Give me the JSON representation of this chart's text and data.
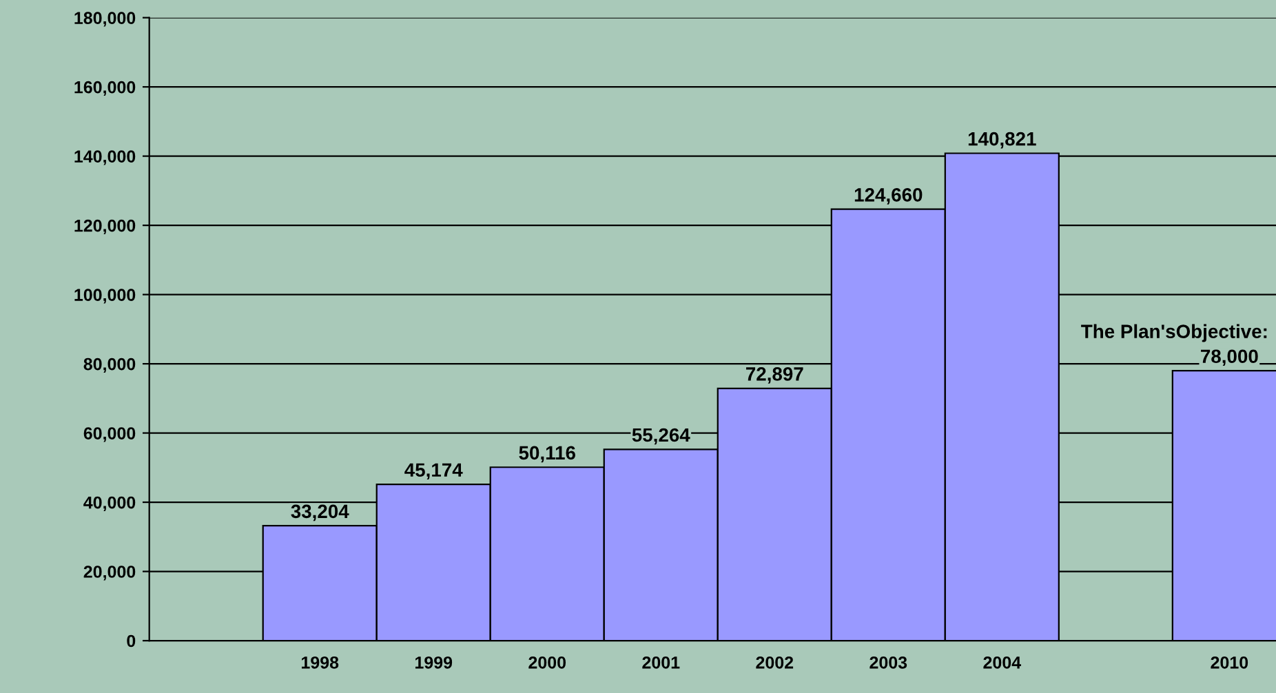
{
  "chart_data": {
    "type": "bar",
    "categories": [
      "1998",
      "1999",
      "2000",
      "2001",
      "2002",
      "2003",
      "2004",
      null,
      "2010"
    ],
    "values": [
      33204,
      45174,
      50116,
      55264,
      72897,
      124660,
      140821,
      null,
      78000
    ],
    "color": "#9999ff",
    "value_labels": [
      "33,204",
      "45,174",
      "50,116",
      "55,264",
      "72,897",
      "124,660",
      "140,821",
      null,
      "78,000"
    ],
    "annotations": [
      {
        "text": "The Plan'sObjective:",
        "x": "2010",
        "y": 78000
      }
    ],
    "ylim": [
      0,
      180000
    ],
    "yticks": [
      {
        "value": 0,
        "label": "0"
      },
      {
        "value": 20000,
        "label": "20,000"
      },
      {
        "value": 40000,
        "label": "40,000"
      },
      {
        "value": 60000,
        "label": "60,000"
      },
      {
        "value": 80000,
        "label": "80,000"
      },
      {
        "value": 100000,
        "label": "100,000"
      },
      {
        "value": 120000,
        "label": "120,000"
      },
      {
        "value": 140000,
        "label": "140,000"
      },
      {
        "value": 160000,
        "label": "160,000"
      },
      {
        "value": 180000,
        "label": "180,000"
      }
    ],
    "grid": "y",
    "legend": false
  }
}
